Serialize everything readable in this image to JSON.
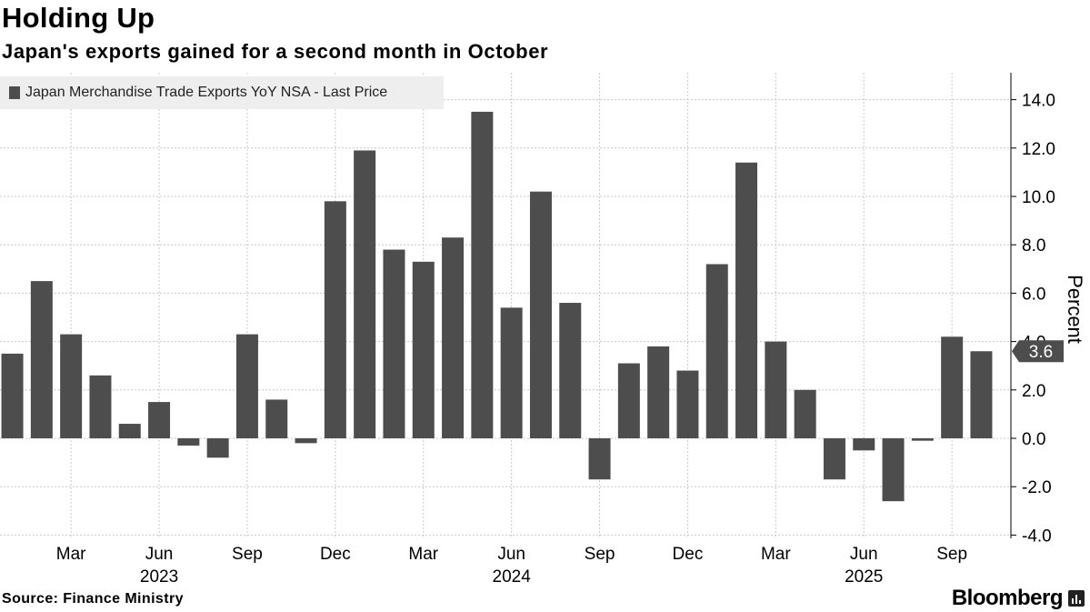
{
  "header": {
    "title": "Holding Up",
    "subtitle": "Japan's exports gained for a second month in October"
  },
  "legend": {
    "label": "Japan Merchandise Trade Exports YoY NSA - Last Price"
  },
  "footer": {
    "source": "Source: Finance Ministry",
    "brand": "Bloomberg"
  },
  "colors": {
    "bar": "#4d4d4d",
    "grid": "#c8c8c8",
    "axis": "#000000",
    "callout": "#4d4d4d",
    "callout_text": "#ffffff"
  },
  "chart_data": {
    "type": "bar",
    "title": "Holding Up",
    "ylabel": "Percent",
    "ylim": [
      -4,
      15
    ],
    "yticks": [
      14,
      12,
      10,
      8,
      6,
      4,
      2,
      0,
      -2,
      -4
    ],
    "ytick_labels": [
      "14.0",
      "12.0",
      "10.0",
      "8.0",
      "6.0",
      "4.0",
      "2.0",
      "0.0",
      "-2.0",
      "-4.0"
    ],
    "categories": [
      "Jan 2023",
      "Feb 2023",
      "Mar 2023",
      "Apr 2023",
      "May 2023",
      "Jun 2023",
      "Jul 2023",
      "Aug 2023",
      "Sep 2023",
      "Oct 2023",
      "Nov 2023",
      "Dec 2023",
      "Jan 2024",
      "Feb 2024",
      "Mar 2024",
      "Apr 2024",
      "May 2024",
      "Jun 2024",
      "Jul 2024",
      "Aug 2024",
      "Sep 2024",
      "Oct 2024",
      "Nov 2024",
      "Dec 2024",
      "Jan 2025",
      "Feb 2025",
      "Mar 2025",
      "Apr 2025",
      "May 2025",
      "Jun 2025",
      "Jul 2025",
      "Aug 2025",
      "Sep 2025",
      "Oct 2025"
    ],
    "values": [
      3.5,
      6.5,
      4.3,
      2.6,
      0.6,
      1.5,
      -0.3,
      -0.8,
      4.3,
      1.6,
      -0.2,
      9.8,
      11.9,
      7.8,
      7.3,
      8.3,
      13.5,
      5.4,
      10.2,
      5.6,
      -1.7,
      3.1,
      3.8,
      2.8,
      7.2,
      11.4,
      4.0,
      2.0,
      -1.7,
      -0.5,
      -2.6,
      -0.1,
      4.2,
      3.6
    ],
    "xtick_labels": [
      {
        "label": "Mar",
        "index": 2
      },
      {
        "label": "Jun",
        "index": 5
      },
      {
        "label": "Sep",
        "index": 8
      },
      {
        "label": "Dec",
        "index": 11
      },
      {
        "label": "Mar",
        "index": 14
      },
      {
        "label": "Jun",
        "index": 17
      },
      {
        "label": "Sep",
        "index": 20
      },
      {
        "label": "Dec",
        "index": 23
      },
      {
        "label": "Mar",
        "index": 26
      },
      {
        "label": "Jun",
        "index": 29
      },
      {
        "label": "Sep",
        "index": 32
      }
    ],
    "year_labels": [
      {
        "label": "2023",
        "index": 5
      },
      {
        "label": "2024",
        "index": 17
      },
      {
        "label": "2025",
        "index": 29
      }
    ],
    "last_value": 3.6,
    "last_value_label": "3.6"
  }
}
